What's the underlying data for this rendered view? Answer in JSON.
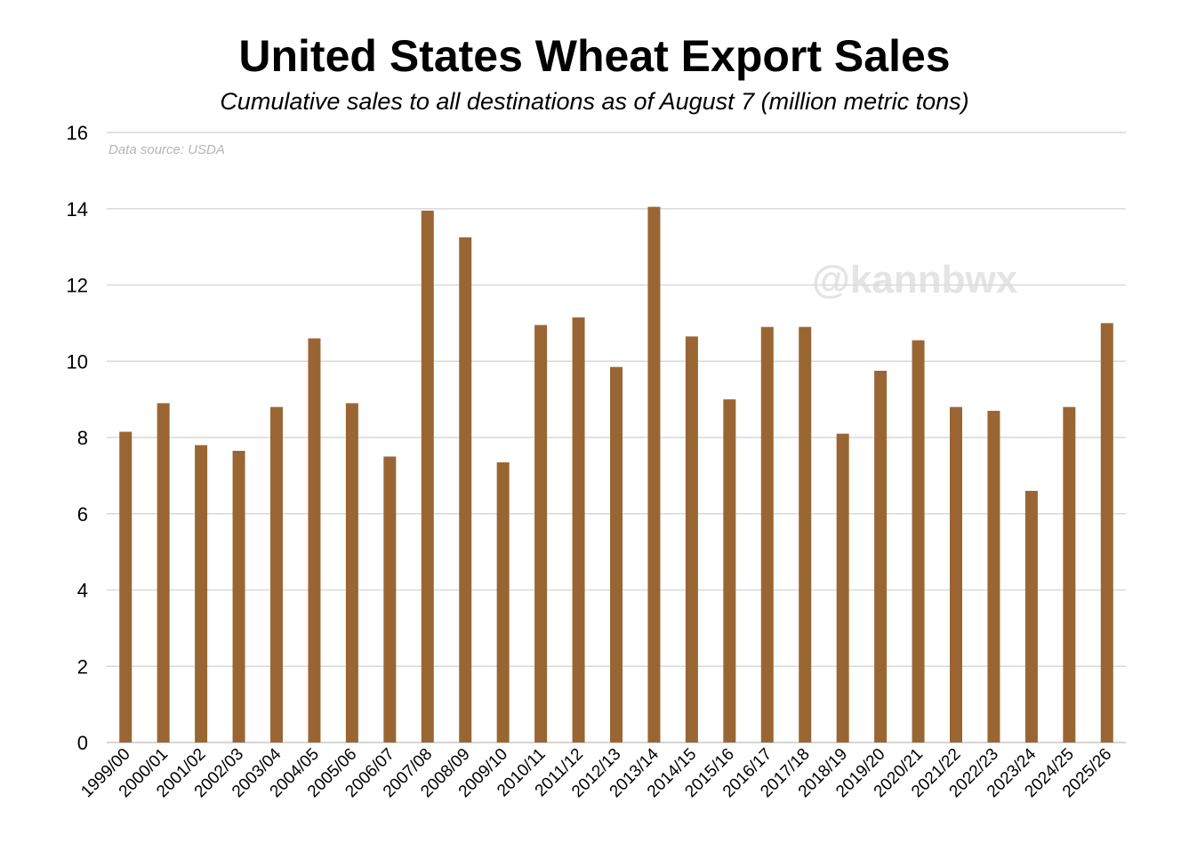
{
  "watermark": "@kannbwx",
  "source_note": "Data source: USDA",
  "chart_data": {
    "type": "bar",
    "title": "United States Wheat Export Sales",
    "subtitle": "Cumulative sales to all destinations as of August 7 (million metric tons)",
    "xlabel": "",
    "ylabel": "",
    "ylim": [
      0,
      16
    ],
    "yticks": [
      0,
      2,
      4,
      6,
      8,
      10,
      12,
      14,
      16
    ],
    "grid": true,
    "bar_color": "#996633",
    "categories": [
      "1999/00",
      "2000/01",
      "2001/02",
      "2002/03",
      "2003/04",
      "2004/05",
      "2005/06",
      "2006/07",
      "2007/08",
      "2008/09",
      "2009/10",
      "2010/11",
      "2011/12",
      "2012/13",
      "2013/14",
      "2014/15",
      "2015/16",
      "2016/17",
      "2017/18",
      "2018/19",
      "2019/20",
      "2020/21",
      "2021/22",
      "2022/23",
      "2023/24",
      "2024/25",
      "2025/26"
    ],
    "values": [
      8.15,
      8.9,
      7.8,
      7.65,
      8.8,
      10.6,
      8.9,
      7.5,
      13.95,
      13.25,
      7.35,
      10.95,
      11.15,
      9.85,
      14.05,
      10.65,
      9.0,
      10.9,
      10.9,
      8.1,
      9.75,
      10.55,
      8.8,
      8.7,
      6.6,
      8.8,
      11.0
    ]
  }
}
